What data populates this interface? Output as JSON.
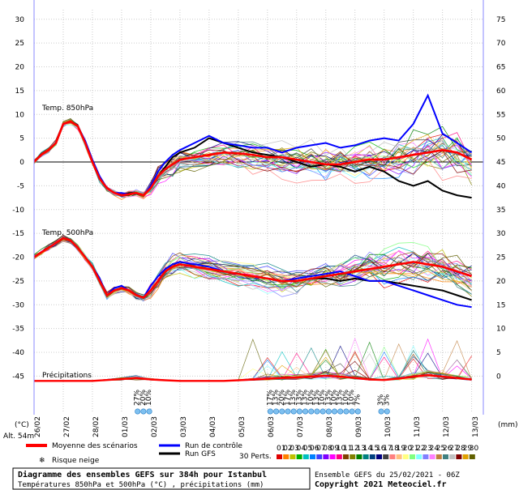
{
  "chart_data": {
    "type": "line",
    "title": "Diagramme des ensembles GEFS sur 384h pour Istanbul",
    "subtitle": "Températures 850hPa et 500hPa (°C) , précipitations (mm)",
    "source_line": "Ensemble GEFS du 25/02/2021 - 06Z",
    "copyright": "Copyright 2021 Meteociel.fr",
    "altitude": "Alt. 54m",
    "left_unit": "(°C)",
    "right_unit": "(mm)",
    "left_axis_ticks": [
      30,
      25,
      20,
      15,
      10,
      5,
      0,
      -5,
      -10,
      -15,
      -20,
      -25,
      -30,
      -35,
      -40,
      -45
    ],
    "right_axis_ticks": [
      75,
      70,
      65,
      60,
      55,
      50,
      45,
      40,
      35,
      30,
      25,
      20,
      15,
      10,
      5,
      0
    ],
    "ylim": [
      -48,
      32
    ],
    "date_labels": [
      "26/02",
      "27/02",
      "28/02",
      "01/03",
      "02/03",
      "03/03",
      "04/03",
      "05/03",
      "06/03",
      "07/03",
      "08/03",
      "09/03",
      "10/03",
      "11/03",
      "12/03",
      "13/03"
    ],
    "grid": true,
    "panel_labels": {
      "t850": "Temp. 850hPa",
      "t500": "Temp. 500hPa",
      "precip": "Précipitations"
    },
    "legend": {
      "mean": "Moyenne des scénarios",
      "control": "Run de contrôle",
      "gfs": "Run GFS",
      "snow": "Risque neige",
      "perts": "30 Perts.",
      "mean_color": "#ff0000",
      "control_color": "#0000ff",
      "gfs_color": "#000000",
      "member_labels": [
        "01",
        "02",
        "03",
        "04",
        "05",
        "06",
        "07",
        "08",
        "09",
        "10",
        "11",
        "12",
        "13",
        "14",
        "15",
        "16",
        "17",
        "18",
        "19",
        "20",
        "21",
        "22",
        "23",
        "24",
        "25",
        "26",
        "27",
        "28",
        "29",
        "30"
      ],
      "member_colors": [
        "#e00000",
        "#ff8000",
        "#c0c000",
        "#00b000",
        "#00c0c0",
        "#0080ff",
        "#4040ff",
        "#8000ff",
        "#ff00ff",
        "#ff0080",
        "#804000",
        "#808000",
        "#008000",
        "#008080",
        "#004080",
        "#000080",
        "#404040",
        "#ff8080",
        "#ffc080",
        "#ffff80",
        "#80ff80",
        "#80ffff",
        "#8080ff",
        "#ff80ff",
        "#c08040",
        "#408080",
        "#c0c0c0",
        "#800000",
        "#e0a000",
        "#606000"
      ]
    },
    "snow_risk_markers": [
      {
        "x": 3.55,
        "label": "27%"
      },
      {
        "x": 3.75,
        "label": "20%"
      },
      {
        "x": 3.95,
        "label": "10%"
      },
      {
        "x": 8.1,
        "label": "17%"
      },
      {
        "x": 8.3,
        "label": "13%"
      },
      {
        "x": 8.5,
        "label": "20%"
      },
      {
        "x": 8.7,
        "label": "17%"
      },
      {
        "x": 8.9,
        "label": "13%"
      },
      {
        "x": 9.1,
        "label": "13%"
      },
      {
        "x": 9.3,
        "label": "13%"
      },
      {
        "x": 9.5,
        "label": "10%"
      },
      {
        "x": 9.7,
        "label": "13%"
      },
      {
        "x": 9.9,
        "label": "10%"
      },
      {
        "x": 10.1,
        "label": "13%"
      },
      {
        "x": 10.3,
        "label": "10%"
      },
      {
        "x": 10.5,
        "label": "13%"
      },
      {
        "x": 10.7,
        "label": "10%"
      },
      {
        "x": 10.9,
        "label": "10%"
      },
      {
        "x": 11.1,
        "label": "7%"
      },
      {
        "x": 11.9,
        "label": "3%"
      },
      {
        "x": 12.1,
        "label": "3%"
      }
    ],
    "series": [
      {
        "key": "mean850",
        "x": [
          0,
          0.25,
          0.5,
          0.75,
          1,
          1.25,
          1.5,
          1.75,
          2,
          2.25,
          2.5,
          2.75,
          3,
          3.25,
          3.5,
          3.75,
          4,
          4.25,
          4.5,
          4.75,
          5,
          5.5,
          6,
          6.5,
          7,
          7.5,
          8,
          8.5,
          9,
          9.5,
          10,
          10.5,
          11,
          11.5,
          12,
          12.5,
          13,
          13.5,
          14,
          14.5,
          15
        ],
        "values": [
          0,
          1.5,
          2.5,
          4,
          8,
          8.5,
          7.5,
          4,
          0,
          -3.5,
          -5.5,
          -6.5,
          -7,
          -6.8,
          -6.5,
          -7,
          -5.5,
          -3,
          -1.5,
          -0.5,
          0.5,
          1,
          1.5,
          2,
          1.8,
          1.5,
          1,
          1,
          0.5,
          0,
          -0.5,
          -0.5,
          0,
          0.5,
          0.5,
          1,
          1.5,
          2,
          2.5,
          2,
          0.5
        ]
      },
      {
        "key": "control850",
        "x": [
          0,
          0.25,
          0.5,
          0.75,
          1,
          1.25,
          1.5,
          1.75,
          2,
          2.25,
          2.5,
          2.75,
          3,
          3.25,
          3.5,
          3.75,
          4,
          4.25,
          4.5,
          4.75,
          5,
          5.5,
          6,
          6.5,
          7,
          7.5,
          8,
          8.5,
          9,
          9.5,
          10,
          10.5,
          11,
          11.5,
          12,
          12.5,
          13,
          13.5,
          14,
          14.5,
          15
        ],
        "values": [
          0,
          1.5,
          2.5,
          4,
          8,
          8.5,
          7.5,
          4.5,
          0.5,
          -3,
          -5.5,
          -6.5,
          -6.5,
          -6.8,
          -6.5,
          -7,
          -5,
          -2,
          0,
          1.5,
          2.5,
          4,
          5.5,
          4,
          3.5,
          3,
          3,
          2,
          3,
          3.5,
          4,
          3,
          3.5,
          4.5,
          5,
          4.5,
          8,
          14,
          6,
          4,
          2
        ]
      },
      {
        "key": "gfs850",
        "x": [
          0,
          0.25,
          0.5,
          0.75,
          1,
          1.25,
          1.5,
          1.75,
          2,
          2.25,
          2.5,
          2.75,
          3,
          3.25,
          3.5,
          3.75,
          4,
          4.25,
          4.5,
          4.75,
          5,
          5.5,
          6,
          6.5,
          7,
          7.5,
          8,
          8.5,
          9,
          9.5,
          10,
          10.5,
          11,
          11.5,
          12,
          12.5,
          13,
          13.5,
          14,
          14.5,
          15
        ],
        "values": [
          0,
          1.5,
          2.5,
          4,
          8,
          8.5,
          7.5,
          4,
          0,
          -3.5,
          -5.5,
          -6.5,
          -7,
          -6.5,
          -6.5,
          -7,
          -5.5,
          -3,
          -1,
          1,
          2,
          3,
          5,
          4,
          3,
          2,
          1.5,
          1,
          0,
          -1,
          -0.5,
          -1,
          -2,
          -1,
          -2,
          -4,
          -5,
          -4,
          -6,
          -7,
          -7.5
        ]
      },
      {
        "key": "mean500",
        "x": [
          0,
          0.25,
          0.5,
          0.75,
          1,
          1.25,
          1.5,
          1.75,
          2,
          2.25,
          2.5,
          2.75,
          3,
          3.25,
          3.5,
          3.75,
          4,
          4.25,
          4.5,
          4.75,
          5,
          5.5,
          6,
          6.5,
          7,
          7.5,
          8,
          8.5,
          9,
          9.5,
          10,
          10.5,
          11,
          11.5,
          12,
          12.5,
          13,
          13.5,
          14,
          14.5,
          15
        ],
        "values": [
          -20,
          -19,
          -18,
          -17,
          -16,
          -16.5,
          -18,
          -20,
          -22,
          -25,
          -28,
          -27,
          -26.5,
          -27,
          -28,
          -28.5,
          -27,
          -25,
          -23,
          -22,
          -21.5,
          -22,
          -22.5,
          -23,
          -23.5,
          -24,
          -24.5,
          -25,
          -25,
          -24.5,
          -24,
          -23.5,
          -23,
          -22.5,
          -22,
          -21.5,
          -21,
          -21.5,
          -22,
          -23,
          -24
        ]
      },
      {
        "key": "control500",
        "x": [
          0,
          0.25,
          0.5,
          0.75,
          1,
          1.25,
          1.5,
          1.75,
          2,
          2.25,
          2.5,
          2.75,
          3,
          3.25,
          3.5,
          3.75,
          4,
          4.25,
          4.5,
          4.75,
          5,
          5.5,
          6,
          6.5,
          7,
          7.5,
          8,
          8.5,
          9,
          9.5,
          10,
          10.5,
          11,
          11.5,
          12,
          12.5,
          13,
          13.5,
          14,
          14.5,
          15
        ],
        "values": [
          -20,
          -19,
          -18,
          -17,
          -16,
          -16.5,
          -18,
          -20,
          -22,
          -24.5,
          -28,
          -26.5,
          -26,
          -27,
          -28,
          -28.5,
          -26,
          -24,
          -22.5,
          -21.5,
          -21,
          -21.5,
          -22,
          -23,
          -23.5,
          -24,
          -24.5,
          -25,
          -24.5,
          -24,
          -23.5,
          -23,
          -24,
          -25,
          -25,
          -26,
          -27,
          -28,
          -29,
          -30,
          -30.5
        ]
      },
      {
        "key": "gfs500",
        "x": [
          0,
          0.25,
          0.5,
          0.75,
          1,
          1.25,
          1.5,
          1.75,
          2,
          2.25,
          2.5,
          2.75,
          3,
          3.25,
          3.5,
          3.75,
          4,
          4.25,
          4.5,
          4.75,
          5,
          5.5,
          6,
          6.5,
          7,
          7.5,
          8,
          8.5,
          9,
          9.5,
          10,
          10.5,
          11,
          11.5,
          12,
          12.5,
          13,
          13.5,
          14,
          14.5,
          15
        ],
        "values": [
          -20,
          -19,
          -18,
          -17,
          -16,
          -16.5,
          -18,
          -20,
          -22,
          -25,
          -28,
          -27,
          -26.5,
          -27,
          -28,
          -28.5,
          -27,
          -25,
          -23,
          -22,
          -21.5,
          -22,
          -22.5,
          -23,
          -23.5,
          -24,
          -24.5,
          -25,
          -25,
          -24.5,
          -24.5,
          -25,
          -24.5,
          -25,
          -25,
          -25.5,
          -26,
          -26.5,
          -27,
          -28,
          -29
        ]
      },
      {
        "key": "meanPrecip",
        "x": [
          0,
          0.5,
          1,
          1.5,
          2,
          2.5,
          3,
          3.5,
          4,
          4.5,
          5,
          5.5,
          6,
          6.5,
          7,
          7.5,
          8,
          8.5,
          9,
          9.5,
          10,
          10.5,
          11,
          11.5,
          12,
          12.5,
          13,
          13.5,
          14,
          14.5,
          15
        ],
        "values": [
          0,
          0,
          0,
          0,
          0,
          0.3,
          0.6,
          1,
          0.5,
          0.2,
          0,
          0,
          0,
          0,
          0.2,
          0.5,
          0.8,
          1,
          1.2,
          1.5,
          1.8,
          1.5,
          1,
          0.5,
          0.3,
          0.8,
          1.5,
          2,
          1.5,
          1,
          0.5
        ]
      }
    ]
  }
}
